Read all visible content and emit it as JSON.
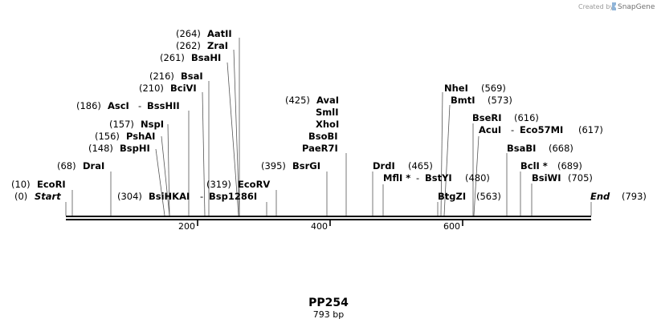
{
  "credit": {
    "created_by": "Created by",
    "brand": "SnapGene"
  },
  "map": {
    "name": "PP254",
    "length_label": "793 bp",
    "ticks": [
      "200",
      "400",
      "600"
    ]
  },
  "features": [
    {
      "id": "start",
      "enzymes": [
        "Start"
      ],
      "pos": "(0)",
      "italic": true
    },
    {
      "id": "ecori",
      "enzymes": [
        "EcoRI"
      ],
      "pos": "(10)"
    },
    {
      "id": "drai",
      "enzymes": [
        "DraI"
      ],
      "pos": "(68)"
    },
    {
      "id": "bsphi",
      "enzymes": [
        "BspHI"
      ],
      "pos": "(148)"
    },
    {
      "id": "pshai",
      "enzymes": [
        "PshAI"
      ],
      "pos": "(156)"
    },
    {
      "id": "nspi",
      "enzymes": [
        "NspI"
      ],
      "pos": "(157)"
    },
    {
      "id": "asci",
      "enzymes": [
        "AscI",
        "BssHII"
      ],
      "pos": "(186)"
    },
    {
      "id": "bcivi",
      "enzymes": [
        "BciVI"
      ],
      "pos": "(210)"
    },
    {
      "id": "bsai",
      "enzymes": [
        "BsaI"
      ],
      "pos": "(216)"
    },
    {
      "id": "bsahi",
      "enzymes": [
        "BsaHI"
      ],
      "pos": "(261)"
    },
    {
      "id": "zrai",
      "enzymes": [
        "ZraI"
      ],
      "pos": "(262)"
    },
    {
      "id": "aatii",
      "enzymes": [
        "AatII"
      ],
      "pos": "(264)"
    },
    {
      "id": "bsihkai",
      "enzymes": [
        "BsiHKAI",
        "Bsp1286I"
      ],
      "pos": "(304)"
    },
    {
      "id": "ecorv",
      "enzymes": [
        "EcoRV"
      ],
      "pos": "(319)"
    },
    {
      "id": "bsrgi",
      "enzymes": [
        "BsrGI"
      ],
      "pos": "(395)"
    },
    {
      "id": "avai",
      "enzymes": [
        "AvaI",
        "SmlI",
        "XhoI",
        "BsoBI",
        "PaeR7I"
      ],
      "pos": "(425)"
    },
    {
      "id": "drdi",
      "enzymes": [
        "DrdI"
      ],
      "pos": "(465)"
    },
    {
      "id": "mfli",
      "enzymes": [
        "MflI *",
        "BstYI"
      ],
      "pos": "(480)"
    },
    {
      "id": "nhei",
      "enzymes": [
        "NheI"
      ],
      "pos": "(569)"
    },
    {
      "id": "bmti",
      "enzymes": [
        "BmtI"
      ],
      "pos": "(573)"
    },
    {
      "id": "btgzi",
      "enzymes": [
        "BtgZI"
      ],
      "pos": "(563)"
    },
    {
      "id": "bseri",
      "enzymes": [
        "BseRI"
      ],
      "pos": "(616)"
    },
    {
      "id": "acui",
      "enzymes": [
        "AcuI",
        "Eco57MI"
      ],
      "pos": "(617)"
    },
    {
      "id": "bsabi",
      "enzymes": [
        "BsaBI"
      ],
      "pos": "(668)"
    },
    {
      "id": "bcli",
      "enzymes": [
        "BclI *"
      ],
      "pos": "(689)"
    },
    {
      "id": "bsiwi",
      "enzymes": [
        "BsiWI"
      ],
      "pos": "(705)"
    },
    {
      "id": "end",
      "enzymes": [
        "End"
      ],
      "pos": "(793)",
      "italic": true
    }
  ],
  "colors": {
    "backbone": "#000000",
    "connector": "#555555",
    "credit": "#9a9a9a",
    "brand_icon": "#8fb4d8"
  }
}
